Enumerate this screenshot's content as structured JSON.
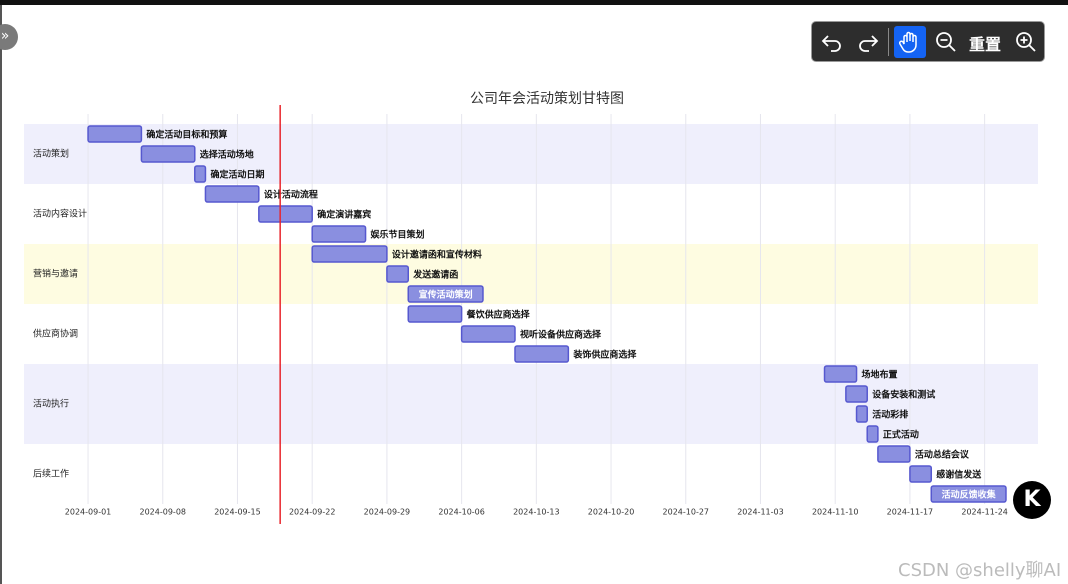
{
  "toolbar": {
    "reset": "重置"
  },
  "watermark": "CSDN @shelly聊AI",
  "logo": "K",
  "chart_data": {
    "type": "gantt",
    "title": "公司年会活动策划甘特图",
    "xlim": [
      "2024-08-26",
      "2024-11-29"
    ],
    "xticks": [
      "2024-09-01",
      "2024-09-08",
      "2024-09-15",
      "2024-09-22",
      "2024-09-29",
      "2024-10-06",
      "2024-10-13",
      "2024-10-20",
      "2024-10-27",
      "2024-11-03",
      "2024-11-10",
      "2024-11-17",
      "2024-11-24"
    ],
    "grid": true,
    "today": "2024-09-19",
    "today_color": "#e8262d",
    "bar_color": "#8a8fe0",
    "bar_stroke": "#5658cf",
    "sections": [
      {
        "name": "活动策划",
        "color": "#efeffc",
        "tasks": [
          {
            "name": "确定活动目标和预算",
            "start": "2024-09-01",
            "end": "2024-09-06"
          },
          {
            "name": "选择活动场地",
            "start": "2024-09-06",
            "end": "2024-09-11"
          },
          {
            "name": "确定活动日期",
            "start": "2024-09-11",
            "end": "2024-09-12"
          }
        ]
      },
      {
        "name": "活动内容设计",
        "color": "#ffffff",
        "tasks": [
          {
            "name": "设计活动流程",
            "start": "2024-09-12",
            "end": "2024-09-17"
          },
          {
            "name": "确定演讲嘉宾",
            "start": "2024-09-17",
            "end": "2024-09-22"
          },
          {
            "name": "娱乐节目策划",
            "start": "2024-09-22",
            "end": "2024-09-27"
          }
        ]
      },
      {
        "name": "营销与邀请",
        "color": "#fefce1",
        "tasks": [
          {
            "name": "设计邀请函和宣传材料",
            "start": "2024-09-22",
            "end": "2024-09-29"
          },
          {
            "name": "发送邀请函",
            "start": "2024-09-29",
            "end": "2024-10-01"
          },
          {
            "name": "宣传活动策划",
            "start": "2024-10-01",
            "end": "2024-10-08"
          }
        ]
      },
      {
        "name": "供应商协调",
        "color": "#ffffff",
        "tasks": [
          {
            "name": "餐饮供应商选择",
            "start": "2024-10-01",
            "end": "2024-10-06"
          },
          {
            "name": "视听设备供应商选择",
            "start": "2024-10-06",
            "end": "2024-10-11"
          },
          {
            "name": "装饰供应商选择",
            "start": "2024-10-11",
            "end": "2024-10-16"
          }
        ]
      },
      {
        "name": "活动执行",
        "color": "#efeffc",
        "tasks": [
          {
            "name": "场地布置",
            "start": "2024-11-09",
            "end": "2024-11-12"
          },
          {
            "name": "设备安装和测试",
            "start": "2024-11-11",
            "end": "2024-11-13"
          },
          {
            "name": "活动彩排",
            "start": "2024-11-12",
            "end": "2024-11-13"
          },
          {
            "name": "正式活动",
            "start": "2024-11-13",
            "end": "2024-11-14"
          }
        ]
      },
      {
        "name": "后续工作",
        "color": "#ffffff",
        "tasks": [
          {
            "name": "活动总结会议",
            "start": "2024-11-14",
            "end": "2024-11-17"
          },
          {
            "name": "感谢信发送",
            "start": "2024-11-17",
            "end": "2024-11-19"
          },
          {
            "name": "活动反馈收集",
            "start": "2024-11-19",
            "end": "2024-11-26"
          }
        ]
      }
    ]
  }
}
